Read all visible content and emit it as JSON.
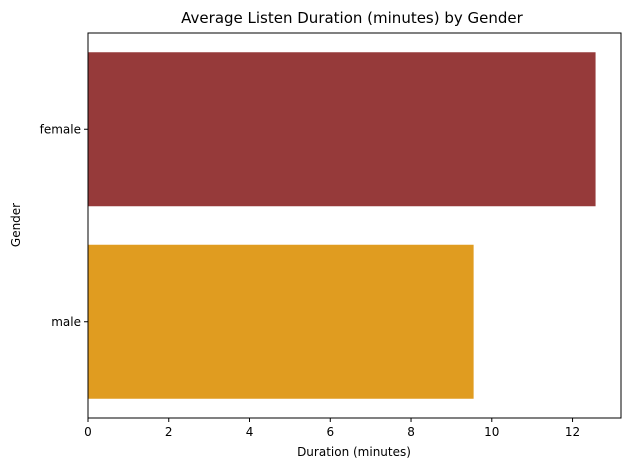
{
  "chart_data": {
    "type": "bar",
    "orientation": "horizontal",
    "title": "Average Listen Duration (minutes) by Gender",
    "xlabel": "Duration (minutes)",
    "ylabel": "Gender",
    "categories": [
      "female",
      "male"
    ],
    "values": [
      12.57,
      9.55
    ],
    "colors": [
      "#963a3a",
      "#e09c20"
    ],
    "xlim": [
      0,
      13.2
    ],
    "xticks": [
      0,
      2,
      4,
      6,
      8,
      10,
      12
    ],
    "xtick_labels": [
      "0",
      "2",
      "4",
      "6",
      "8",
      "10",
      "12"
    ],
    "grid": false,
    "legend": "none"
  }
}
